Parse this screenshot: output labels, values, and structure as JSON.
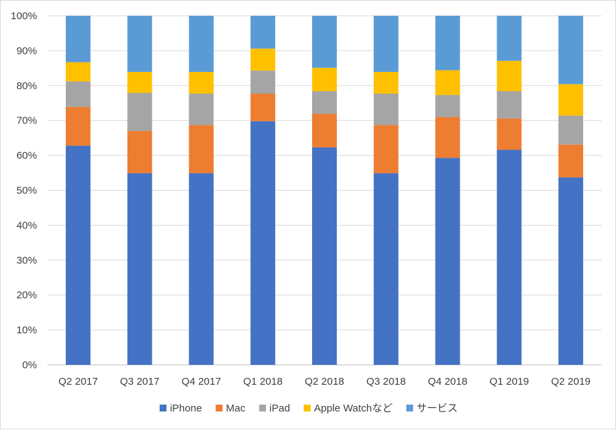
{
  "chart_data": {
    "type": "bar",
    "stacked": true,
    "percent_stacked": true,
    "categories": [
      "Q2 2017",
      "Q3 2017",
      "Q4 2017",
      "Q1 2018",
      "Q2 2018",
      "Q3 2018",
      "Q4 2018",
      "Q1 2019",
      "Q2 2019"
    ],
    "series": [
      {
        "name": "iPhone",
        "color": "#4472C4",
        "values": [
          62.8,
          54.9,
          54.9,
          69.8,
          62.3,
          54.9,
          59.3,
          61.6,
          53.7
        ]
      },
      {
        "name": "Mac",
        "color": "#ED7D31",
        "values": [
          11.1,
          12.1,
          13.8,
          7.9,
          9.6,
          13.8,
          11.7,
          9.0,
          9.4
        ]
      },
      {
        "name": "iPad",
        "color": "#A5A5A5",
        "values": [
          7.3,
          10.9,
          9.0,
          6.6,
          6.5,
          9.0,
          6.3,
          7.8,
          8.3
        ]
      },
      {
        "name": "Apple Watchなど",
        "color": "#FFC000",
        "values": [
          5.5,
          6.0,
          6.2,
          6.3,
          6.7,
          6.2,
          7.1,
          8.7,
          9.0
        ]
      },
      {
        "name": "サービス",
        "color": "#5B9BD5",
        "values": [
          13.3,
          16.1,
          16.1,
          9.4,
          14.9,
          16.1,
          15.6,
          12.9,
          19.6
        ]
      }
    ],
    "yticks": [
      "0%",
      "10%",
      "20%",
      "30%",
      "40%",
      "50%",
      "60%",
      "70%",
      "80%",
      "90%",
      "100%"
    ],
    "ylim": [
      0,
      100
    ],
    "grid": true,
    "legend": "bottom",
    "title": "",
    "xlabel": "",
    "ylabel": ""
  }
}
